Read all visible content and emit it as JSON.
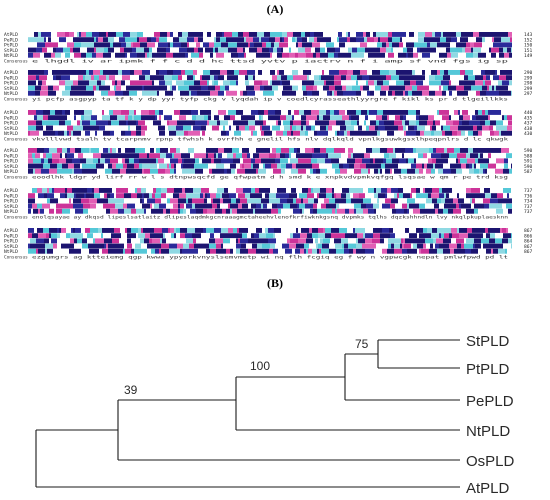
{
  "panels": {
    "a_label": "(A)",
    "b_label": "(B)"
  },
  "alignment": {
    "sequence_names": [
      "AtPLD",
      "PePLD",
      "PtPLD",
      "StPLD",
      "NtPLD"
    ],
    "consensus_label": "Consensus",
    "blocks": [
      {
        "numbers": [
          "143",
          "152",
          "150",
          "151",
          "149"
        ],
        "consensus": "e  lhgdl  iv ar ipmk  f  f c     d d   hc ttsd yvtv  p   iactrv  n      f i  amp    sf  vnd  fgs  ig   sp"
      },
      {
        "numbers": [
          "290",
          "299",
          "298",
          "299",
          "297"
        ],
        "consensus": "yi   pcfp  asgpyp   ta    tf      k  y  dp  yyr tyfp ckg  v lyqdah   ip    v  coedlcyrasseathlyyrgre f  kikl ks   pr  d tlgeillkks"
      },
      {
        "numbers": [
          "440",
          "435",
          "437",
          "438",
          "430"
        ],
        "consensus": "vkvlllvwd   tsalh  tv  tcarpnmv    rpnp    tfwhsh                  k  ovrfhh  e gnelil hfs  nlv  dqlkqld  vpnlkgsuwkgsxlhpeqpnlrs  d  lc  qkwgk"
      },
      {
        "numbers": [
          "590",
          "588",
          "591",
          "590",
          "587"
        ],
        "consensus": "eoodlhk ldgr yd lirf rr    w  l    s          dtnpwsqcfd   ge  qfwpatm  d  h  smd   k e  xnpkvdvpmkvqfgq  lsqsae  w  qm  r pe  trd ksg"
      },
      {
        "numbers": [
          "737",
          "736",
          "734",
          "737",
          "737"
        ],
        "consensus": "enolqsayae ay dkqsd lipeslsatlaitz dlipeslaqdmkgcnraaagmctaheehvlenofkrfiwknkgsnq dvpmks  tqlhs  dqzkshhndln  lvy nkqlpkuplaesknn"
      },
      {
        "numbers": [
          "867",
          "866",
          "864",
          "867",
          "867"
        ],
        "consensus": "ezgumgrs  ag ktteiemg  qgp kwwa        ypyorkvnyslsemvmetp wi  nq   flh  fcgiq     eg  f  wy  n vgpwcgk nepat pmlwfpwd  pd  lt"
      }
    ]
  },
  "tree": {
    "leaves": [
      "StPLD",
      "PtPLD",
      "PePLD",
      "NtPLD",
      "OsPLD",
      "AtPLD"
    ],
    "bootstrap_values": [
      "75",
      "100",
      "39"
    ]
  }
}
